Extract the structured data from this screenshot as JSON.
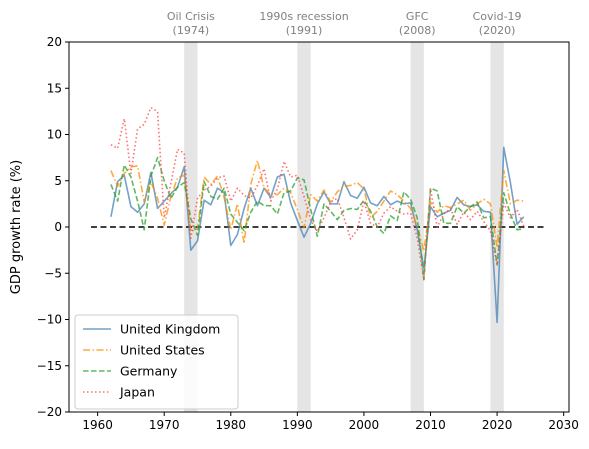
{
  "chart_data": {
    "type": "line",
    "ylabel": "GDP growth rate (%)",
    "xlabel": "",
    "title": "",
    "xlim": [
      1955.7,
      2030.8
    ],
    "ylim": [
      -20,
      20
    ],
    "xticks": [
      1960,
      1970,
      1980,
      1990,
      2000,
      2010,
      2020,
      2030
    ],
    "yticks": [
      -20,
      -15,
      -10,
      -5,
      0,
      5,
      10,
      15,
      20
    ],
    "grid": false,
    "legend_position": "lower-left",
    "reference_line": {
      "y": 0,
      "x_from": 1959,
      "x_to": 2027,
      "style": "dashed",
      "color": "#000000"
    },
    "events": [
      {
        "label_line1": "Oil Crisis",
        "label_line2": "(1974)",
        "x_start": 1973,
        "x_end": 1975
      },
      {
        "label_line1": "1990s recession",
        "label_line2": "(1991)",
        "x_start": 1990,
        "x_end": 1992
      },
      {
        "label_line1": "GFC",
        "label_line2": "(2008)",
        "x_start": 2007,
        "x_end": 2009
      },
      {
        "label_line1": "Covid-19",
        "label_line2": "(2020)",
        "x_start": 2019,
        "x_end": 2021
      }
    ],
    "series": [
      {
        "name": "United Kingdom",
        "color": "#4682b4",
        "dash": "solid",
        "x": [
          1962,
          1963,
          1964,
          1965,
          1966,
          1967,
          1968,
          1969,
          1970,
          1971,
          1972,
          1973,
          1974,
          1975,
          1976,
          1977,
          1978,
          1979,
          1980,
          1981,
          1982,
          1983,
          1984,
          1985,
          1986,
          1987,
          1988,
          1989,
          1990,
          1991,
          1992,
          1993,
          1994,
          1995,
          1996,
          1997,
          1998,
          1999,
          2000,
          2001,
          2002,
          2003,
          2004,
          2005,
          2006,
          2007,
          2008,
          2009,
          2010,
          2011,
          2012,
          2013,
          2014,
          2015,
          2016,
          2017,
          2018,
          2019,
          2020,
          2021,
          2022,
          2023,
          2024
        ],
        "values": [
          1.1,
          4.9,
          5.6,
          2.2,
          1.6,
          2.5,
          5.9,
          2.0,
          2.8,
          3.6,
          4.3,
          6.5,
          -2.5,
          -1.5,
          2.9,
          2.4,
          4.2,
          3.7,
          -2.0,
          -0.8,
          2.0,
          4.2,
          2.3,
          4.2,
          3.2,
          5.4,
          5.7,
          2.6,
          0.7,
          -1.1,
          0.4,
          2.5,
          3.8,
          2.5,
          2.5,
          4.9,
          3.4,
          3.1,
          4.3,
          2.6,
          2.3,
          3.3,
          2.4,
          2.8,
          2.5,
          2.6,
          -0.3,
          -4.5,
          2.2,
          1.1,
          1.5,
          1.8,
          3.2,
          2.4,
          2.2,
          2.4,
          1.7,
          1.6,
          -10.3,
          8.6,
          4.8,
          0.3,
          1.1
        ]
      },
      {
        "name": "United States",
        "color": "#ff8c00",
        "dash": "dashdot",
        "x": [
          1962,
          1963,
          1964,
          1965,
          1966,
          1967,
          1968,
          1969,
          1970,
          1971,
          1972,
          1973,
          1974,
          1975,
          1976,
          1977,
          1978,
          1979,
          1980,
          1981,
          1982,
          1983,
          1984,
          1985,
          1986,
          1987,
          1988,
          1989,
          1990,
          1991,
          1992,
          1993,
          1994,
          1995,
          1996,
          1997,
          1998,
          1999,
          2000,
          2001,
          2002,
          2003,
          2004,
          2005,
          2006,
          2007,
          2008,
          2009,
          2010,
          2011,
          2012,
          2013,
          2014,
          2015,
          2016,
          2017,
          2018,
          2019,
          2020,
          2021,
          2022,
          2023,
          2024
        ],
        "values": [
          6.1,
          4.4,
          5.8,
          6.5,
          6.6,
          2.7,
          4.9,
          3.1,
          0.2,
          3.3,
          5.3,
          5.6,
          -0.5,
          -0.2,
          5.4,
          4.6,
          5.5,
          3.2,
          -0.3,
          2.5,
          -1.8,
          4.6,
          7.2,
          4.2,
          3.5,
          3.5,
          4.2,
          3.7,
          1.9,
          -0.1,
          3.5,
          2.8,
          4.0,
          2.7,
          3.8,
          4.4,
          4.5,
          4.8,
          4.1,
          1.0,
          1.7,
          2.8,
          3.9,
          3.5,
          2.8,
          2.0,
          0.1,
          -2.6,
          2.7,
          1.6,
          2.3,
          2.1,
          2.5,
          2.9,
          1.8,
          2.5,
          3.0,
          2.5,
          -2.2,
          6.1,
          2.5,
          2.9,
          2.8
        ]
      },
      {
        "name": "Germany",
        "color": "#2ca02c",
        "dash": "dashed",
        "x": [
          1962,
          1963,
          1964,
          1965,
          1966,
          1967,
          1968,
          1969,
          1970,
          1971,
          1972,
          1973,
          1974,
          1975,
          1976,
          1977,
          1978,
          1979,
          1980,
          1981,
          1982,
          1983,
          1984,
          1985,
          1986,
          1987,
          1988,
          1989,
          1990,
          1991,
          1992,
          1993,
          1994,
          1995,
          1996,
          1997,
          1998,
          1999,
          2000,
          2001,
          2002,
          2003,
          2004,
          2005,
          2006,
          2007,
          2008,
          2009,
          2010,
          2011,
          2012,
          2013,
          2014,
          2015,
          2016,
          2017,
          2018,
          2019,
          2020,
          2021,
          2022,
          2023,
          2024
        ],
        "values": [
          4.6,
          2.8,
          6.7,
          5.4,
          2.8,
          -0.3,
          5.5,
          7.5,
          5.0,
          3.1,
          4.3,
          4.8,
          0.9,
          -0.9,
          4.9,
          3.3,
          3.0,
          4.2,
          1.4,
          0.5,
          -0.4,
          1.6,
          2.8,
          2.3,
          2.3,
          1.4,
          3.7,
          3.9,
          5.3,
          5.1,
          1.9,
          -1.0,
          2.5,
          1.7,
          0.8,
          1.8,
          2.0,
          1.9,
          2.9,
          1.7,
          0.0,
          -0.7,
          1.2,
          0.7,
          3.8,
          3.0,
          1.0,
          -5.7,
          4.2,
          3.9,
          0.4,
          0.4,
          2.2,
          1.5,
          2.2,
          2.7,
          1.0,
          1.1,
          -4.1,
          3.7,
          1.4,
          -0.3,
          -0.2
        ]
      },
      {
        "name": "Japan",
        "color": "#ff4040",
        "dash": "dotted",
        "x": [
          1962,
          1963,
          1964,
          1965,
          1966,
          1967,
          1968,
          1969,
          1970,
          1971,
          1972,
          1973,
          1974,
          1975,
          1976,
          1977,
          1978,
          1979,
          1980,
          1981,
          1982,
          1983,
          1984,
          1985,
          1986,
          1987,
          1988,
          1989,
          1990,
          1991,
          1992,
          1993,
          1994,
          1995,
          1996,
          1997,
          1998,
          1999,
          2000,
          2001,
          2002,
          2003,
          2004,
          2005,
          2006,
          2007,
          2008,
          2009,
          2010,
          2011,
          2012,
          2013,
          2014,
          2015,
          2016,
          2017,
          2018,
          2019,
          2020,
          2021,
          2022,
          2023,
          2024
        ],
        "values": [
          8.9,
          8.5,
          11.7,
          5.8,
          10.6,
          11.1,
          12.9,
          12.5,
          1.0,
          4.7,
          8.4,
          8.0,
          -1.2,
          3.1,
          4.0,
          4.4,
          5.3,
          5.5,
          2.8,
          4.2,
          3.4,
          3.1,
          4.5,
          6.3,
          2.8,
          4.1,
          7.1,
          5.4,
          5.6,
          3.3,
          0.8,
          -0.5,
          1.0,
          2.7,
          3.1,
          1.0,
          -1.3,
          -0.3,
          2.8,
          0.4,
          0.0,
          1.5,
          2.2,
          1.7,
          1.4,
          1.5,
          -1.2,
          -5.7,
          4.1,
          0.0,
          1.4,
          2.0,
          0.3,
          1.6,
          0.8,
          1.7,
          0.6,
          -0.4,
          -4.1,
          2.6,
          1.0,
          1.9,
          0.1
        ]
      }
    ]
  }
}
